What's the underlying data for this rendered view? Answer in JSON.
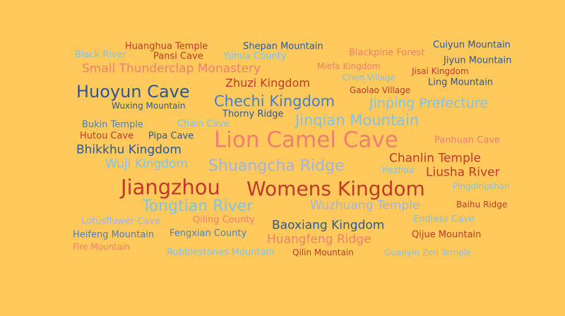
{
  "background": "#FFC95C",
  "palette": {
    "salmon": "#F07F70",
    "dark_red": "#C0392B",
    "dark_blue": "#2B5797",
    "mid_blue": "#4A7FC1",
    "light_blue": "#7FC2EC",
    "lavender": "#9DB5E6"
  },
  "words": [
    {
      "text": "Huanghua Temple",
      "color": "#C0392B"
    },
    {
      "text": "Shepan Mountain",
      "color": "#2B5797"
    },
    {
      "text": "Cuiyun Mountain",
      "color": "#2B5797"
    },
    {
      "text": "Black River",
      "color": "#7FC2EC"
    },
    {
      "text": "Pansi Cave",
      "color": "#C0392B"
    },
    {
      "text": "Yuhua County",
      "color": "#7FC2EC"
    },
    {
      "text": "Blackpine Forest",
      "color": "#F07F70"
    },
    {
      "text": "Jiyun Mountain",
      "color": "#2B5797"
    },
    {
      "text": "Small Thunderclap Monastery",
      "color": "#F07F70"
    },
    {
      "text": "Miefa Kingdom",
      "color": "#F07F70"
    },
    {
      "text": "Jisai Kingdom",
      "color": "#C0392B"
    },
    {
      "text": "Chen Village",
      "color": "#7FC2EC"
    },
    {
      "text": "Ling Mountain",
      "color": "#2B5797"
    },
    {
      "text": "Zhuzi Kingdom",
      "color": "#C0392B"
    },
    {
      "text": "Huoyun Cave",
      "color": "#2B5797"
    },
    {
      "text": "Gaolao Village",
      "color": "#C0392B"
    },
    {
      "text": "Chechi Kingdom",
      "color": "#4A7FC1"
    },
    {
      "text": "Jinping Prefecture",
      "color": "#7FC2EC"
    },
    {
      "text": "Wuxing Mountain",
      "color": "#2B5797"
    },
    {
      "text": "Thorny Ridge",
      "color": "#2B5797"
    },
    {
      "text": "Jinqian Mountain",
      "color": "#7FC2EC"
    },
    {
      "text": "Bukin Temple",
      "color": "#4A7FC1"
    },
    {
      "text": "Chain Cave",
      "color": "#7FC2EC"
    },
    {
      "text": "Hutou Cave",
      "color": "#C0392B"
    },
    {
      "text": "Pipa Cave",
      "color": "#2B5797"
    },
    {
      "text": "Lion Camel Cave",
      "color": "#F07F70"
    },
    {
      "text": "Panhuan Cave",
      "color": "#F07F70"
    },
    {
      "text": "Bhikkhu Kingdom",
      "color": "#2B5797"
    },
    {
      "text": "Chanlin Temple",
      "color": "#C0392B"
    },
    {
      "text": "Wuji Kingdom",
      "color": "#7FC2EC"
    },
    {
      "text": "Shuangcha Ridge",
      "color": "#9DB5E6"
    },
    {
      "text": "Hezhou",
      "color": "#7FC2EC"
    },
    {
      "text": "Liusha River",
      "color": "#C0392B"
    },
    {
      "text": "Jiangzhou",
      "color": "#C0392B"
    },
    {
      "text": "Womens Kingdom",
      "color": "#C0392B"
    },
    {
      "text": "Pingdingshan",
      "color": "#7FC2EC"
    },
    {
      "text": "Tongtian River",
      "color": "#7FC2EC"
    },
    {
      "text": "Wuzhuang Temple",
      "color": "#9DB5E6"
    },
    {
      "text": "Baihu Ridge",
      "color": "#C0392B"
    },
    {
      "text": "Lotusflower Cave",
      "color": "#9DB5E6"
    },
    {
      "text": "Qiling County",
      "color": "#F07F70"
    },
    {
      "text": "Baoxiang Kingdom",
      "color": "#2B5797"
    },
    {
      "text": "Endless Cave",
      "color": "#7FC2EC"
    },
    {
      "text": "Heifeng Mountain",
      "color": "#4A7FC1"
    },
    {
      "text": "Fengxian County",
      "color": "#4A7FC1"
    },
    {
      "text": "Qijue Mountain",
      "color": "#C0392B"
    },
    {
      "text": "Huangfeng Ridge",
      "color": "#F07F70"
    },
    {
      "text": "Fire Mountain",
      "color": "#F07F70"
    },
    {
      "text": "Rubblestones Mountain",
      "color": "#7FC2EC"
    },
    {
      "text": "Qilin Mountain",
      "color": "#C0392B"
    },
    {
      "text": "Guanyin Zen Temple",
      "color": "#7FC2EC"
    }
  ]
}
